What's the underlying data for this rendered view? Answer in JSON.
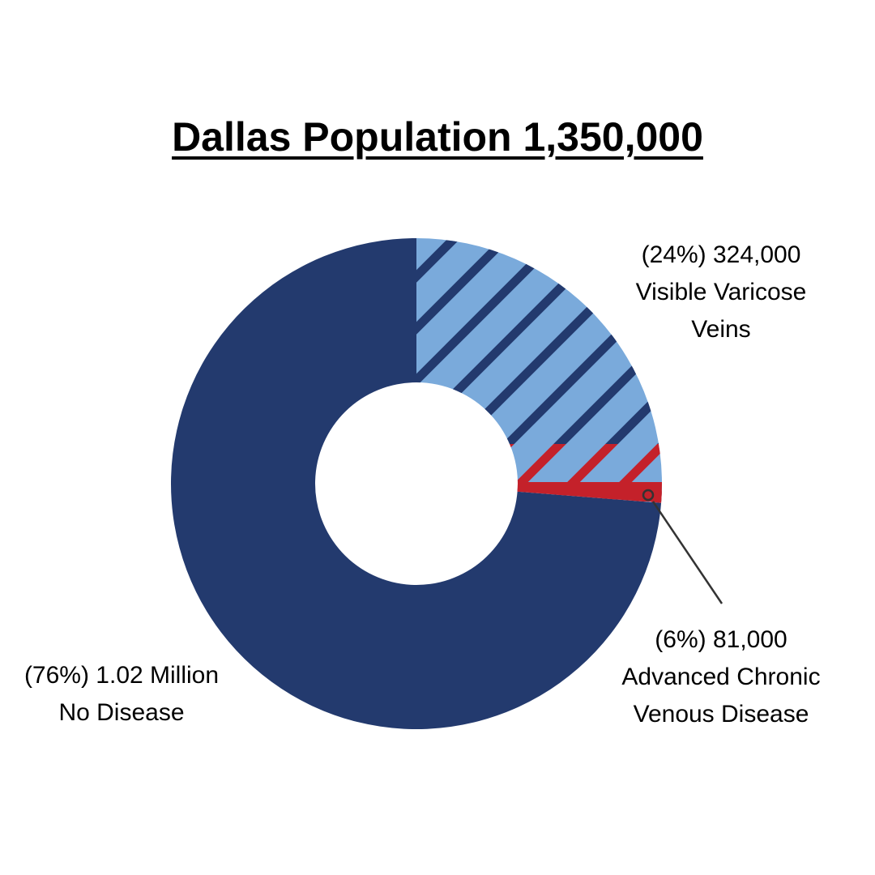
{
  "chart_data": {
    "type": "pie",
    "title": "Dallas Population 1,350,000",
    "slices": [
      {
        "label": "Visible Varicose Veins",
        "percent": 24,
        "value_text": "(24%) 324,000",
        "color": "#7aaadb",
        "pattern": "hatched",
        "stripe_color": "#233a6e"
      },
      {
        "label": "Advanced Chronic Venous Disease",
        "percent": 6,
        "value_text": "(6%) 81,000",
        "color": "#7aaadb",
        "pattern": "hatched",
        "stripe_color": "#c4212a"
      },
      {
        "label": "No Disease",
        "percent": 76,
        "value_text": "(76%) 1.02 Million",
        "color": "#233a6e",
        "pattern": "solid"
      }
    ]
  },
  "labels": {
    "varicose": {
      "line1": "(24%) 324,000",
      "line2": "Visible Varicose",
      "line3": "Veins"
    },
    "advanced": {
      "line1": "(6%) 81,000",
      "line2": "Advanced Chronic",
      "line3": "Venous Disease"
    },
    "nodisease": {
      "line1": "(76%) 1.02 Million",
      "line2": "No Disease"
    }
  },
  "colors": {
    "navy": "#233a6e",
    "light_blue": "#7aaadb",
    "red": "#c4212a",
    "leader": "#333333"
  }
}
